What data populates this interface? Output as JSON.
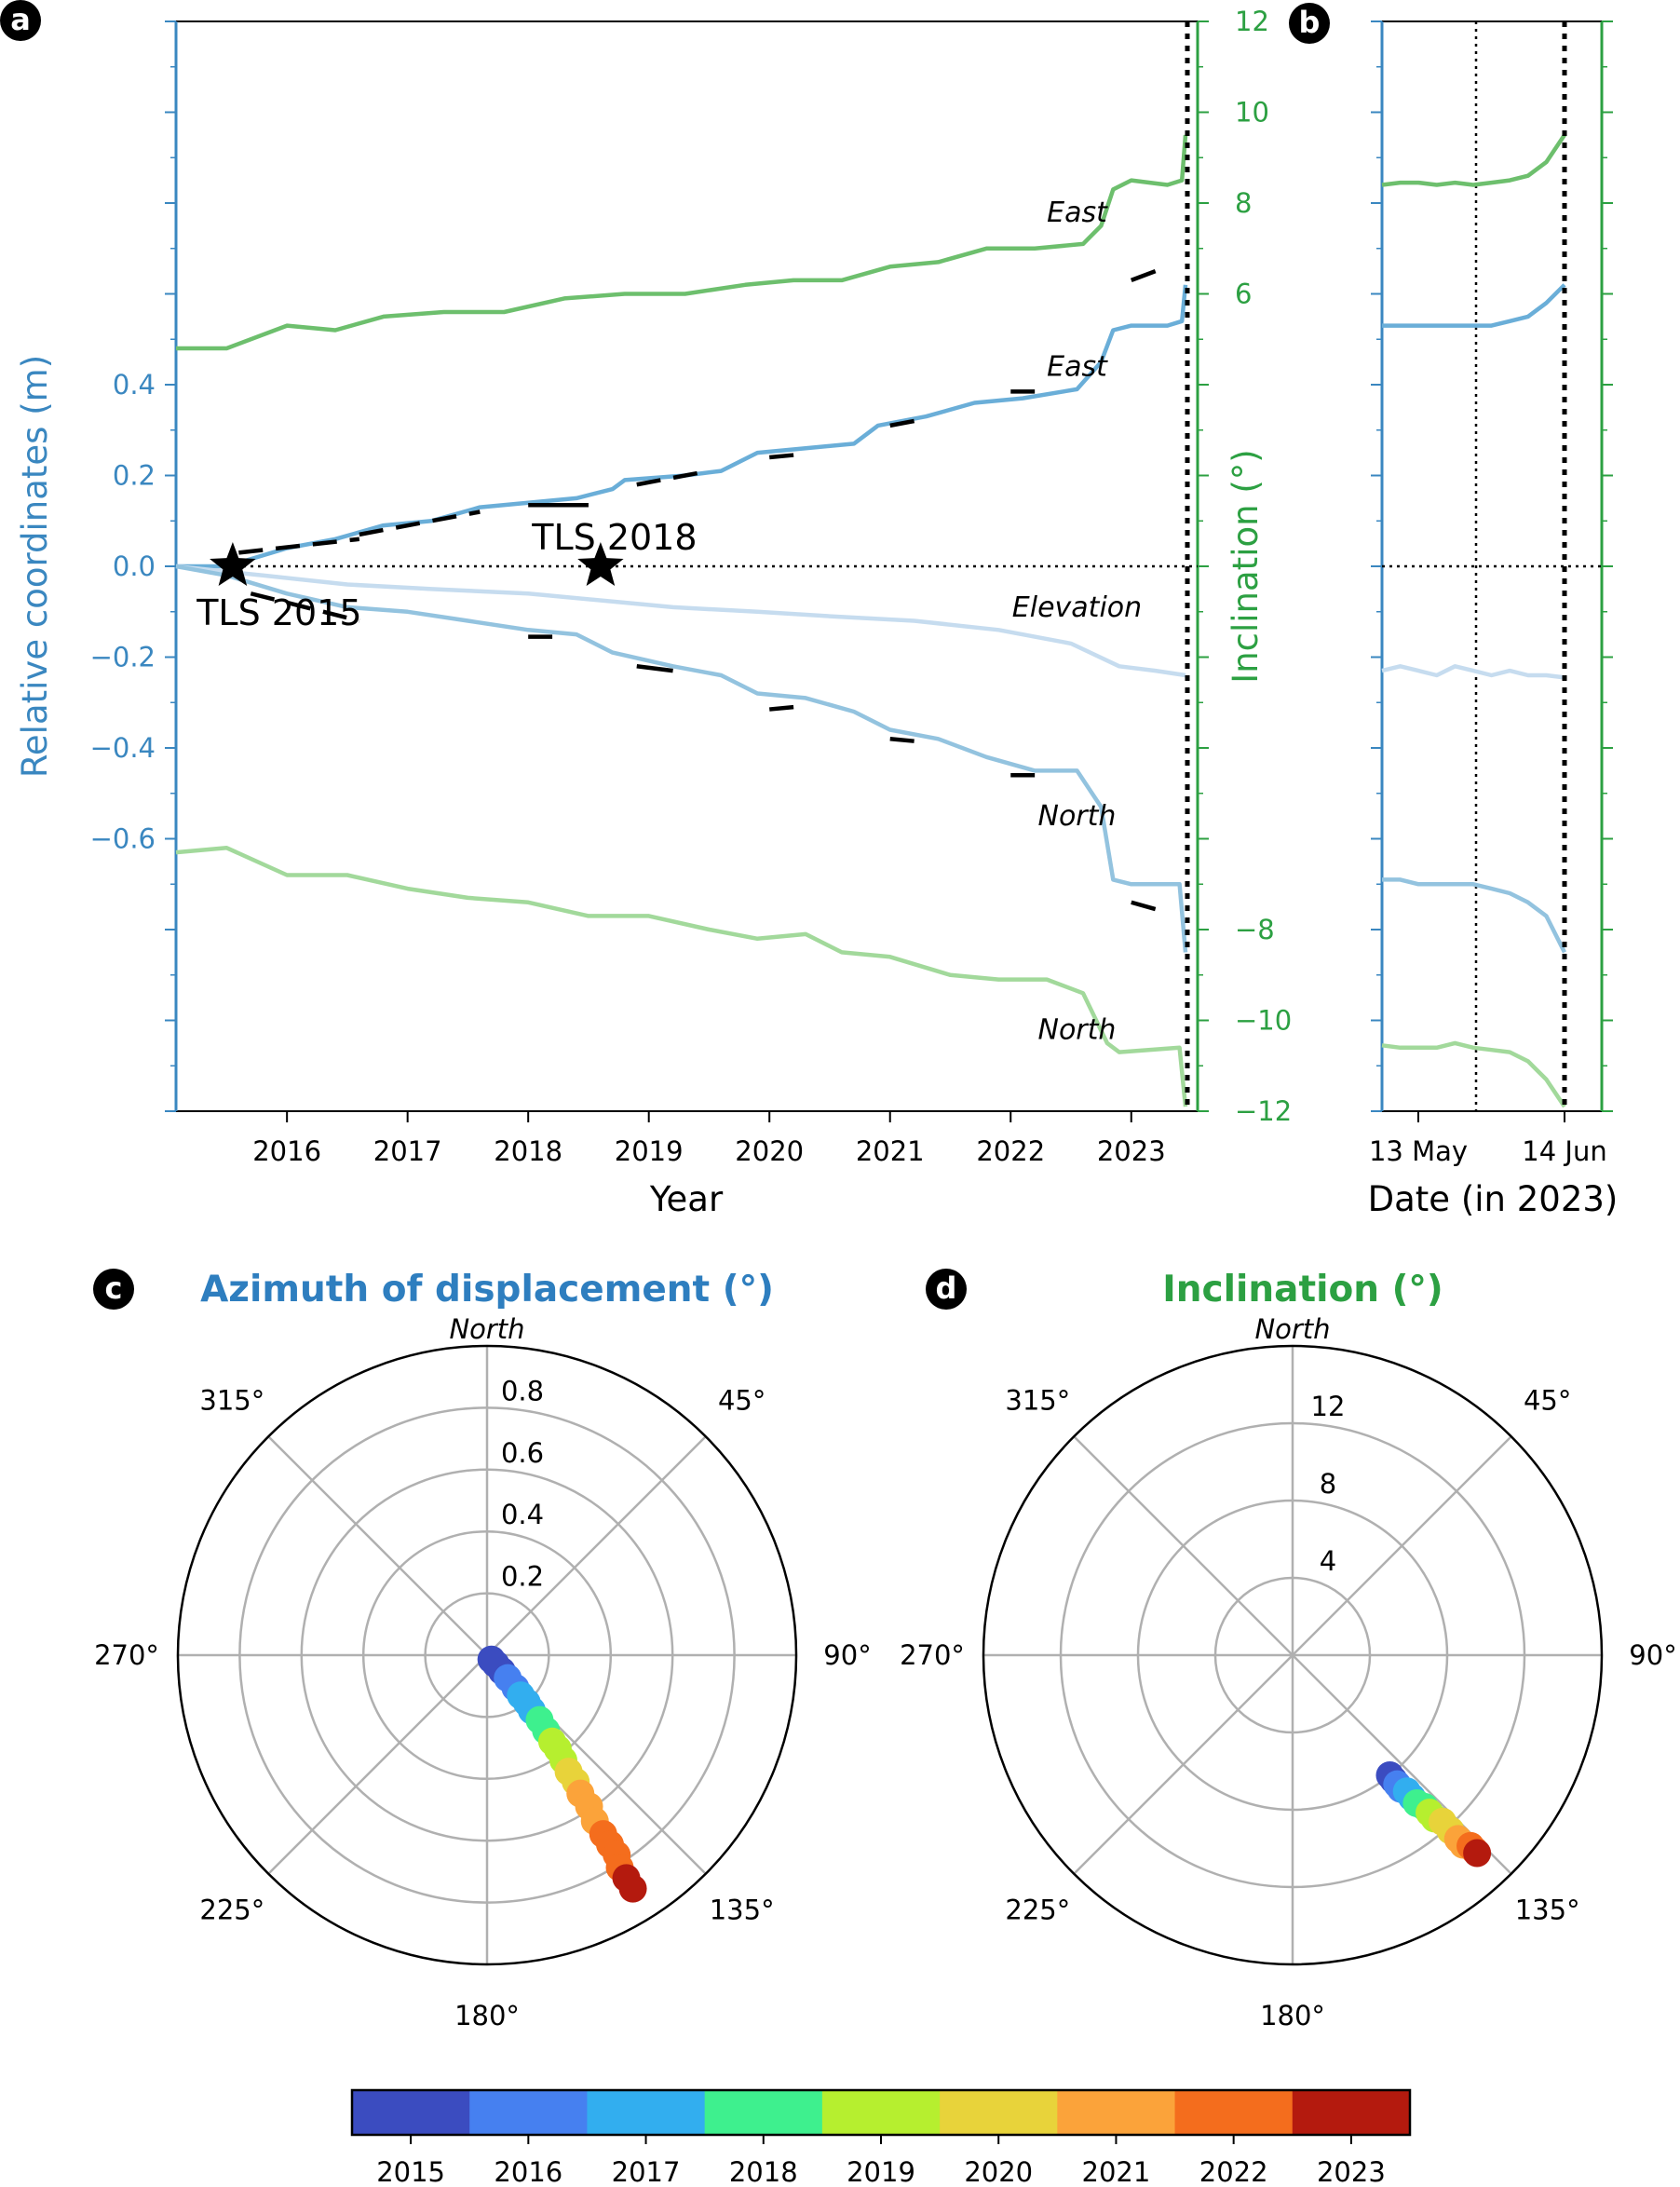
{
  "panels": {
    "a": "a",
    "b": "b",
    "c": "c",
    "d": "d"
  },
  "colors": {
    "blue_axis": "#3a87c0",
    "green_axis": "#2ca042",
    "east_disp": "#6aaed8",
    "north_disp": "#93c3df",
    "elevation": "#c6dcef",
    "east_incl": "#6dbf6d",
    "north_incl": "#a2d99b"
  },
  "chart_data": [
    {
      "panel": "a",
      "type": "line",
      "xlabel": "Year",
      "ylabel": "Relative coordinates (m)",
      "y2label": "Inclination (°)",
      "xlim": [
        2015.08,
        2023.55
      ],
      "ylim": [
        -1.2,
        1.2
      ],
      "y2lim": [
        -12,
        12
      ],
      "xticks": [
        "2016",
        "2017",
        "2018",
        "2019",
        "2020",
        "2021",
        "2022",
        "2023"
      ],
      "yticks": [
        "0.4",
        "0.2",
        "0.0",
        "−0.2",
        "−0.4",
        "−0.6"
      ],
      "y2ticks": [
        "12",
        "10",
        "8",
        "6",
        "Inclination (°)",
        "−8",
        "−10",
        "−12"
      ],
      "y2tick_values": [
        12,
        10,
        8,
        6,
        -8,
        -10,
        -12
      ],
      "zero_line": true,
      "event_line_x": 2023.45,
      "series": [
        {
          "name": "East",
          "axis": "inclination",
          "color": "#6dbf6d",
          "x": [
            2015.08,
            2015.5,
            2016.0,
            2016.4,
            2016.8,
            2017.3,
            2017.8,
            2018.3,
            2018.8,
            2019.3,
            2019.8,
            2020.2,
            2020.6,
            2021.0,
            2021.4,
            2021.8,
            2022.2,
            2022.6,
            2022.75,
            2022.85,
            2023.0,
            2023.3,
            2023.42,
            2023.45
          ],
          "y": [
            4.8,
            4.8,
            5.3,
            5.2,
            5.5,
            5.6,
            5.6,
            5.9,
            6.0,
            6.0,
            6.2,
            6.3,
            6.3,
            6.6,
            6.7,
            7.0,
            7.0,
            7.1,
            7.5,
            8.3,
            8.5,
            8.4,
            8.5,
            9.5
          ]
        },
        {
          "name": "East",
          "axis": "relative",
          "color": "#6aaed8",
          "x": [
            2015.08,
            2015.5,
            2016.0,
            2016.4,
            2016.8,
            2017.2,
            2017.6,
            2018.0,
            2018.4,
            2018.7,
            2018.8,
            2019.3,
            2019.6,
            2019.9,
            2020.3,
            2020.7,
            2020.9,
            2021.3,
            2021.7,
            2022.1,
            2022.55,
            2022.75,
            2022.85,
            2023.0,
            2023.3,
            2023.42,
            2023.45
          ],
          "y": [
            0.0,
            0.0,
            0.04,
            0.06,
            0.09,
            0.1,
            0.13,
            0.14,
            0.15,
            0.17,
            0.19,
            0.2,
            0.21,
            0.25,
            0.26,
            0.27,
            0.31,
            0.33,
            0.36,
            0.37,
            0.39,
            0.45,
            0.52,
            0.53,
            0.53,
            0.54,
            0.62
          ]
        },
        {
          "name": "Elevation",
          "axis": "relative",
          "color": "#c6dcef",
          "x": [
            2015.08,
            2015.8,
            2016.5,
            2017.2,
            2018.0,
            2018.8,
            2019.2,
            2019.9,
            2020.5,
            2021.2,
            2021.9,
            2022.5,
            2022.9,
            2023.2,
            2023.45
          ],
          "y": [
            0.0,
            -0.02,
            -0.04,
            -0.05,
            -0.06,
            -0.08,
            -0.09,
            -0.1,
            -0.11,
            -0.12,
            -0.14,
            -0.17,
            -0.22,
            -0.23,
            -0.24
          ]
        },
        {
          "name": "North",
          "axis": "relative",
          "color": "#93c3df",
          "x": [
            2015.08,
            2015.5,
            2016.0,
            2016.5,
            2017.0,
            2017.5,
            2018.0,
            2018.4,
            2018.7,
            2019.2,
            2019.6,
            2019.9,
            2020.3,
            2020.7,
            2021.0,
            2021.4,
            2021.8,
            2022.2,
            2022.55,
            2022.75,
            2022.85,
            2023.0,
            2023.4,
            2023.45
          ],
          "y": [
            0.0,
            -0.02,
            -0.06,
            -0.09,
            -0.1,
            -0.12,
            -0.14,
            -0.15,
            -0.19,
            -0.22,
            -0.24,
            -0.28,
            -0.29,
            -0.32,
            -0.36,
            -0.38,
            -0.42,
            -0.45,
            -0.45,
            -0.53,
            -0.69,
            -0.7,
            -0.7,
            -0.85
          ]
        },
        {
          "name": "North",
          "axis": "inclination",
          "color": "#a2d99b",
          "x": [
            2015.08,
            2015.5,
            2016.0,
            2016.5,
            2017.0,
            2017.5,
            2018.0,
            2018.5,
            2019.0,
            2019.5,
            2019.9,
            2020.3,
            2020.6,
            2021.0,
            2021.5,
            2021.9,
            2022.3,
            2022.6,
            2022.8,
            2022.9,
            2023.4,
            2023.45
          ],
          "y": [
            -6.3,
            -6.2,
            -6.8,
            -6.8,
            -7.1,
            -7.3,
            -7.4,
            -7.7,
            -7.7,
            -8.0,
            -8.2,
            -8.1,
            -8.5,
            -8.6,
            -9.0,
            -9.1,
            -9.1,
            -9.4,
            -10.5,
            -10.7,
            -10.6,
            -11.9
          ]
        }
      ],
      "model_segments": [
        {
          "axis": "relative",
          "x": [
            2015.6,
            2016.6
          ],
          "y": [
            0.03,
            0.06
          ]
        },
        {
          "axis": "relative",
          "x": [
            2016.6,
            2017.6
          ],
          "y": [
            0.07,
            0.12
          ]
        },
        {
          "axis": "relative",
          "x": [
            2018.0,
            2018.5
          ],
          "y": [
            0.135,
            0.135
          ]
        },
        {
          "axis": "relative",
          "x": [
            2018.9,
            2019.5
          ],
          "y": [
            0.18,
            0.21
          ]
        },
        {
          "axis": "relative",
          "x": [
            2020.0,
            2020.2
          ],
          "y": [
            0.24,
            0.245
          ]
        },
        {
          "axis": "relative",
          "x": [
            2021.0,
            2021.2
          ],
          "y": [
            0.31,
            0.32
          ]
        },
        {
          "axis": "relative",
          "x": [
            2022.0,
            2022.2
          ],
          "y": [
            0.385,
            0.385
          ]
        },
        {
          "axis": "inclination",
          "x": [
            2023.0,
            2023.2
          ],
          "y": [
            6.3,
            6.5
          ]
        },
        {
          "axis": "relative",
          "x": [
            2015.7,
            2016.6
          ],
          "y": [
            -0.06,
            -0.12
          ]
        },
        {
          "axis": "relative",
          "x": [
            2018.0,
            2018.2
          ],
          "y": [
            -0.155,
            -0.155
          ]
        },
        {
          "axis": "relative",
          "x": [
            2018.9,
            2019.2
          ],
          "y": [
            -0.22,
            -0.23
          ]
        },
        {
          "axis": "relative",
          "x": [
            2020.0,
            2020.2
          ],
          "y": [
            -0.315,
            -0.31
          ]
        },
        {
          "axis": "relative",
          "x": [
            2021.0,
            2021.2
          ],
          "y": [
            -0.38,
            -0.385
          ]
        },
        {
          "axis": "relative",
          "x": [
            2022.0,
            2022.2
          ],
          "y": [
            -0.46,
            -0.46
          ]
        },
        {
          "axis": "relative",
          "x": [
            2023.0,
            2023.2
          ],
          "y": [
            -0.74,
            -0.755
          ]
        }
      ],
      "annotations": [
        {
          "text": "East",
          "x": 2022.55,
          "y": 0.78,
          "style": "italic"
        },
        {
          "text": "East",
          "x": 2022.55,
          "y": 0.44,
          "style": "italic"
        },
        {
          "text": "Elevation",
          "x": 2022.55,
          "y": -0.09,
          "style": "italic"
        },
        {
          "text": "North",
          "x": 2022.55,
          "y": -0.55,
          "style": "italic"
        },
        {
          "text": "North",
          "x": 2022.55,
          "y": -1.02,
          "style": "italic"
        }
      ],
      "markers": [
        {
          "label": "TLS 2015",
          "x": 2015.55,
          "y": 0.0
        },
        {
          "label": "TLS 2018",
          "x": 2018.6,
          "y": 0.0
        }
      ]
    },
    {
      "panel": "b",
      "type": "line",
      "xlabel": "Date (in 2023)",
      "xticks": [
        "13 May",
        "14 Jun"
      ],
      "ylim": [
        -1.2,
        1.2
      ],
      "y2lim": [
        -12,
        12
      ],
      "series": [
        {
          "name": "East inclination",
          "axis": "inclination",
          "color": "#6dbf6d",
          "y": [
            8.4,
            8.45,
            8.45,
            8.4,
            8.45,
            8.4,
            8.45,
            8.5,
            8.6,
            8.9,
            9.5
          ]
        },
        {
          "name": "East",
          "axis": "relative",
          "color": "#6aaed8",
          "y": [
            0.53,
            0.53,
            0.53,
            0.53,
            0.53,
            0.53,
            0.53,
            0.54,
            0.55,
            0.58,
            0.62
          ]
        },
        {
          "name": "Elevation",
          "axis": "relative",
          "color": "#c6dcef",
          "y": [
            -0.23,
            -0.22,
            -0.23,
            -0.24,
            -0.22,
            -0.23,
            -0.24,
            -0.23,
            -0.24,
            -0.24,
            -0.245
          ]
        },
        {
          "name": "North",
          "axis": "relative",
          "color": "#93c3df",
          "y": [
            -0.69,
            -0.69,
            -0.7,
            -0.7,
            -0.7,
            -0.7,
            -0.71,
            -0.72,
            -0.74,
            -0.77,
            -0.85
          ]
        },
        {
          "name": "North inclination",
          "axis": "inclination",
          "color": "#a2d99b",
          "y": [
            -10.55,
            -10.6,
            -10.6,
            -10.6,
            -10.5,
            -10.6,
            -10.65,
            -10.7,
            -10.9,
            -11.3,
            -11.9
          ]
        }
      ]
    },
    {
      "panel": "c",
      "type": "scatter",
      "title": "Azimuth of displacement (°)",
      "title_color": "#2e7ebf",
      "north_label": "North",
      "radial_ticks": [
        "0.2",
        "0.4",
        "0.6",
        "0.8"
      ],
      "radial_tick_values": [
        0.2,
        0.4,
        0.6,
        0.8
      ],
      "rlim": [
        0,
        1.0
      ],
      "angle_labels": [
        "45°",
        "90°",
        "135°",
        "180°",
        "225°",
        "270°",
        "315°"
      ],
      "points": {
        "azimuth_deg": [
          135,
          136,
          137,
          138,
          139,
          140,
          140,
          141,
          141,
          142,
          143,
          143,
          144,
          145,
          145,
          146,
          146,
          147,
          147,
          147,
          147,
          148,
          148,
          148
        ],
        "radius": [
          0.02,
          0.04,
          0.07,
          0.1,
          0.14,
          0.17,
          0.2,
          0.23,
          0.27,
          0.31,
          0.35,
          0.38,
          0.42,
          0.46,
          0.5,
          0.54,
          0.59,
          0.64,
          0.69,
          0.73,
          0.77,
          0.81,
          0.85,
          0.89
        ],
        "year": [
          2015.1,
          2015.4,
          2015.8,
          2016.2,
          2016.6,
          2017.0,
          2017.4,
          2017.8,
          2018.2,
          2018.6,
          2019.0,
          2019.4,
          2019.8,
          2020.2,
          2020.6,
          2021.0,
          2021.4,
          2021.8,
          2022.2,
          2022.5,
          2022.7,
          2022.9,
          2023.1,
          2023.4
        ]
      }
    },
    {
      "panel": "d",
      "type": "scatter",
      "title": "Inclination (°)",
      "title_color": "#2ca042",
      "north_label": "North",
      "radial_ticks": [
        "4",
        "8",
        "12"
      ],
      "radial_tick_values": [
        4,
        8,
        12
      ],
      "rlim": [
        0,
        16
      ],
      "angle_labels": [
        "45°",
        "90°",
        "135°",
        "180°",
        "225°",
        "270°",
        "315°"
      ],
      "points": {
        "azimuth_deg": [
          141,
          141,
          141,
          141,
          140,
          140,
          140,
          139,
          139,
          139,
          138,
          138,
          138,
          138,
          137,
          137,
          137
        ],
        "radius": [
          8.0,
          8.3,
          8.6,
          8.9,
          9.2,
          9.6,
          10.0,
          10.4,
          10.8,
          11.2,
          11.6,
          12.2,
          12.8,
          13.2,
          13.5,
          13.8,
          14.0
        ],
        "year": [
          2015.1,
          2015.6,
          2016.1,
          2016.6,
          2017.1,
          2017.6,
          2018.1,
          2018.6,
          2019.1,
          2019.6,
          2020.1,
          2020.6,
          2021.1,
          2021.6,
          2022.1,
          2022.8,
          2023.4
        ]
      }
    },
    {
      "panel": "colorbar",
      "type": "heatmap",
      "labels": [
        "2015",
        "2016",
        "2017",
        "2018",
        "2019",
        "2020",
        "2021",
        "2022",
        "2023"
      ],
      "colors": [
        "#3b4cc0",
        "#4680f0",
        "#32aeef",
        "#3ef08e",
        "#b6ef2f",
        "#e8d33a",
        "#fba33a",
        "#f46d1d",
        "#b41a0e"
      ]
    }
  ]
}
